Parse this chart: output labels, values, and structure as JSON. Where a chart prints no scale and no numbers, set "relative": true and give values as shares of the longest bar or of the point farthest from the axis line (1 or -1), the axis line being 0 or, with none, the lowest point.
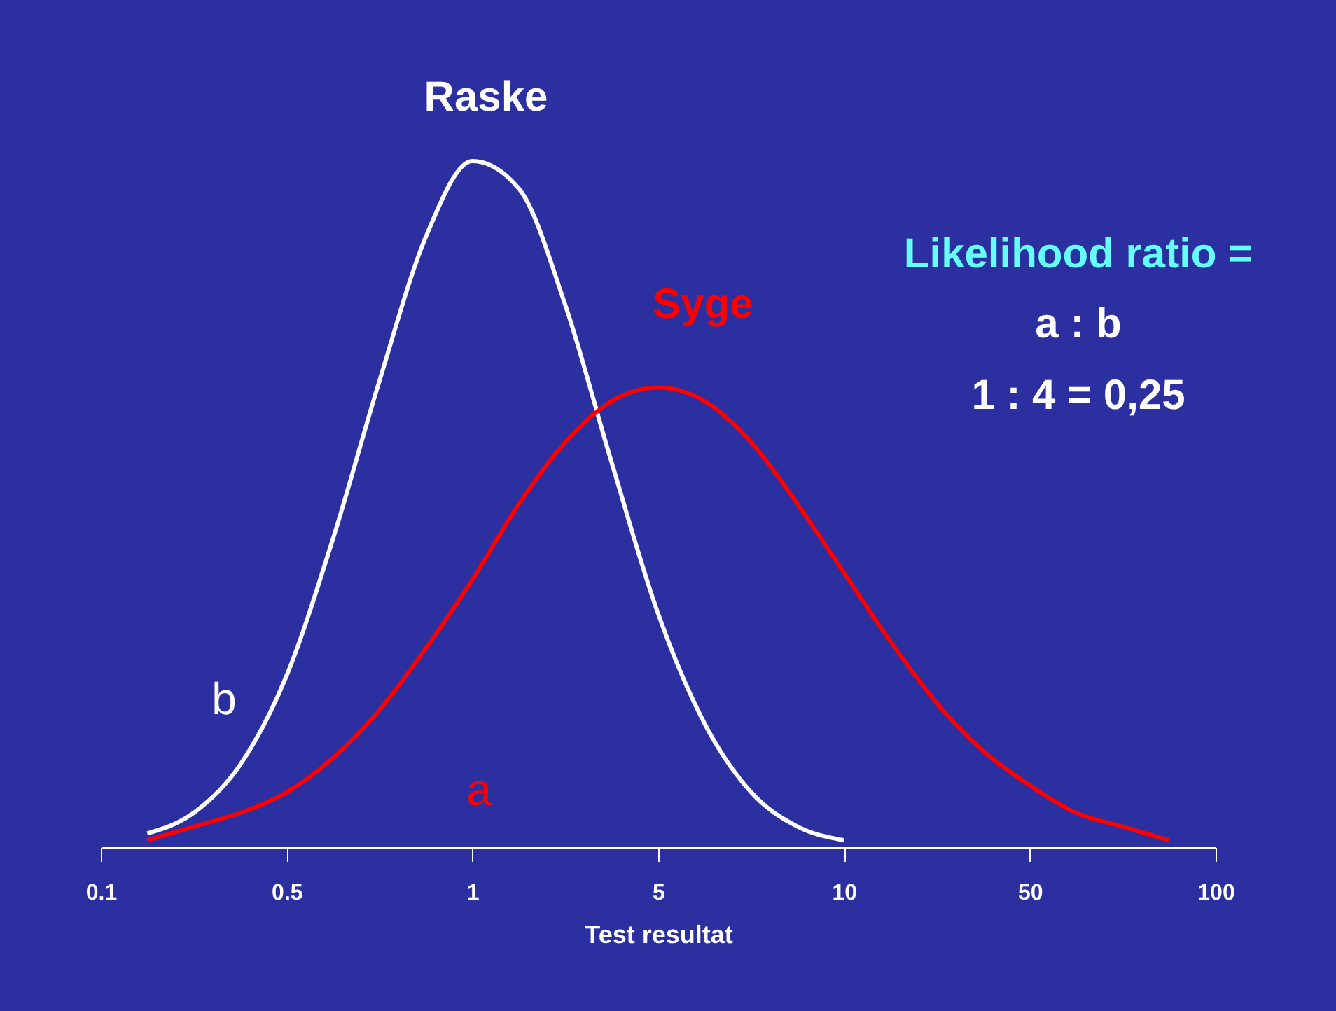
{
  "chart_data": {
    "type": "line",
    "relative": true,
    "xlabel": "Test resultat",
    "categories": [
      "0.1",
      null,
      null,
      null,
      "0.5",
      null,
      null,
      null,
      "1",
      null,
      null,
      null,
      "5",
      null,
      null,
      null,
      "10",
      null,
      null,
      null,
      "50",
      null,
      null,
      null,
      "100"
    ],
    "grid": false,
    "marker": "none",
    "line_style": "solid",
    "series": [
      {
        "name": "Raske",
        "color": "#ffffff",
        "values": [
          null,
          0.02,
          0.05,
          0.12,
          0.25,
          0.45,
          0.68,
          0.89,
          1.0,
          0.96,
          0.79,
          0.56,
          0.34,
          0.18,
          0.08,
          0.03,
          0.01,
          null,
          null,
          null,
          null,
          null,
          null,
          null,
          null
        ]
      },
      {
        "name": "Syge",
        "color": "#ff0000",
        "values": [
          null,
          0.01,
          0.03,
          0.05,
          0.08,
          0.13,
          0.2,
          0.29,
          0.39,
          0.5,
          0.59,
          0.65,
          0.67,
          0.65,
          0.59,
          0.5,
          0.4,
          0.3,
          0.21,
          0.14,
          0.09,
          0.05,
          0.03,
          0.01,
          null
        ]
      }
    ],
    "annotations": [
      "Likelihood ratio =",
      "a : b",
      "1 : 4 = 0,25",
      "b",
      "a"
    ]
  }
}
